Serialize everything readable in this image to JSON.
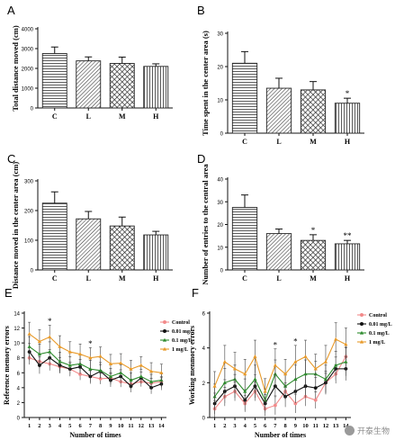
{
  "chart_data": [
    {
      "panel": "A",
      "type": "bar",
      "categories": [
        "C",
        "L",
        "M",
        "H"
      ],
      "values": [
        2750,
        2380,
        2250,
        2100
      ],
      "errors": [
        330,
        200,
        320,
        130
      ],
      "annotations": [
        "",
        "",
        "",
        ""
      ],
      "patterns": [
        "horizontal-lines",
        "diagonal-hatch",
        "crosshatch",
        "vertical-lines"
      ],
      "xlabel": "",
      "ylabel": "Total distance moved (cm)",
      "yticks": [
        0,
        1000,
        2000,
        3000,
        4000
      ],
      "ylim": [
        0,
        4000
      ]
    },
    {
      "panel": "B",
      "type": "bar",
      "categories": [
        "C",
        "L",
        "M",
        "H"
      ],
      "values": [
        21,
        13.5,
        13,
        9
      ],
      "errors": [
        3.5,
        3,
        2.5,
        1.5
      ],
      "annotations": [
        "",
        "",
        "",
        "*"
      ],
      "patterns": [
        "horizontal-lines",
        "diagonal-hatch",
        "crosshatch",
        "vertical-lines"
      ],
      "xlabel": "",
      "ylabel": "Time spent in the center area (s)",
      "yticks": [
        0,
        10,
        20,
        30
      ],
      "ylim": [
        0,
        30
      ]
    },
    {
      "panel": "C",
      "type": "bar",
      "categories": [
        "C",
        "L",
        "M",
        "H"
      ],
      "values": [
        225,
        172,
        148,
        118
      ],
      "errors": [
        38,
        25,
        30,
        12
      ],
      "annotations": [
        "",
        "",
        "",
        ""
      ],
      "patterns": [
        "horizontal-lines",
        "diagonal-hatch",
        "crosshatch",
        "vertical-lines"
      ],
      "xlabel": "",
      "ylabel": "Distance moved in the center area (cm)",
      "yticks": [
        0,
        100,
        200,
        300
      ],
      "ylim": [
        0,
        300
      ]
    },
    {
      "panel": "D",
      "type": "bar",
      "categories": [
        "C",
        "L",
        "M",
        "H"
      ],
      "values": [
        27.5,
        16,
        13,
        11.5
      ],
      "errors": [
        5.5,
        2,
        2.5,
        1.5
      ],
      "annotations": [
        "",
        "",
        "*",
        "**"
      ],
      "patterns": [
        "horizontal-lines",
        "diagonal-hatch",
        "crosshatch",
        "vertical-lines"
      ],
      "xlabel": "",
      "ylabel": "Number of entries to the central area",
      "yticks": [
        0,
        10,
        20,
        30,
        40
      ],
      "ylim": [
        0,
        40
      ]
    },
    {
      "panel": "E",
      "type": "line",
      "x": [
        1,
        2,
        3,
        4,
        5,
        6,
        7,
        8,
        9,
        10,
        11,
        12,
        13,
        14
      ],
      "series": [
        {
          "name": "Control",
          "color": "#f28a8a",
          "marker": "circle",
          "values": [
            8,
            7.5,
            7.2,
            6.8,
            6.5,
            5.8,
            5.5,
            5.2,
            5.3,
            4.8,
            4.5,
            4.8,
            4.6,
            4.8
          ]
        },
        {
          "name": "0.01 mg/",
          "color": "#111111",
          "marker": "circle",
          "values": [
            8.8,
            7,
            8,
            7,
            6.5,
            6.8,
            5.5,
            6.2,
            5,
            5.5,
            4.2,
            5.3,
            4,
            4.5
          ]
        },
        {
          "name": "0.1 mg/L",
          "color": "#2e8b2e",
          "marker": "triangle",
          "values": [
            9.5,
            8.5,
            8.8,
            7.5,
            7,
            7.2,
            6.5,
            6.3,
            5.5,
            6,
            5,
            5.5,
            4.8,
            5
          ]
        },
        {
          "name": "1 mg/L",
          "color": "#e89a2a",
          "marker": "triangle",
          "values": [
            11.2,
            10.2,
            10.8,
            9.5,
            8.8,
            8.5,
            8,
            8.2,
            7.2,
            7.3,
            6.5,
            7,
            6.2,
            6
          ]
        }
      ],
      "errors": [
        1.5,
        1.5,
        1.5,
        1.4,
        1.3,
        1.3,
        1.3,
        1.2,
        1.2,
        1.2,
        1.1,
        1.1,
        1.1,
        1.1
      ],
      "annotations": [
        {
          "x": 3,
          "text": "*"
        },
        {
          "x": 7,
          "text": "*"
        }
      ],
      "xlabel": "Number of times",
      "ylabel": "Reference memory errors",
      "yticks": [
        0,
        2,
        4,
        6,
        8,
        10,
        12,
        14
      ],
      "ylim": [
        0,
        14
      ],
      "legend": "right"
    },
    {
      "panel": "F",
      "type": "line",
      "x": [
        1,
        2,
        3,
        4,
        5,
        6,
        7,
        8,
        9,
        10,
        11,
        12,
        13,
        14
      ],
      "series": [
        {
          "name": "Control",
          "color": "#f28a8a",
          "marker": "circle",
          "values": [
            0.5,
            1.2,
            1.5,
            0.8,
            1.5,
            0.5,
            0.7,
            1.5,
            0.8,
            1.2,
            1,
            2,
            2.5,
            3.5
          ]
        },
        {
          "name": "0.01 mg/L",
          "color": "#111111",
          "marker": "circle",
          "values": [
            0.8,
            1.5,
            1.8,
            1,
            1.8,
            0.8,
            1.8,
            1.2,
            1.5,
            1.8,
            1.7,
            2,
            2.8,
            2.8
          ]
        },
        {
          "name": "0.1 mg/L",
          "color": "#2e8b2e",
          "marker": "triangle",
          "values": [
            1.2,
            2,
            2.2,
            1.5,
            2.2,
            1,
            2.5,
            1.8,
            2.2,
            2.5,
            2.5,
            2.2,
            3,
            3.2
          ]
        },
        {
          "name": "1 mg/L",
          "color": "#e89a2a",
          "marker": "triangle",
          "values": [
            1.8,
            3.2,
            2.8,
            2.5,
            3.5,
            1.5,
            3,
            2.5,
            3.2,
            3.5,
            2.8,
            3.2,
            4.5,
            4.2
          ]
        }
      ],
      "errors": [
        0.8,
        0.9,
        0.9,
        0.8,
        0.9,
        0.7,
        0.9,
        0.8,
        0.9,
        0.9,
        0.8,
        0.9,
        0.9,
        0.9
      ],
      "annotations": [
        {
          "x": 7,
          "text": "*"
        },
        {
          "x": 9,
          "text": "*"
        }
      ],
      "xlabel": "Number of times",
      "ylabel": "Working menmory errors",
      "yticks": [
        0,
        2,
        4,
        6
      ],
      "ylim": [
        0,
        6
      ],
      "legend": "right"
    }
  ],
  "watermark": {
    "text": "开泰生物",
    "icon": "wechat-icon"
  }
}
